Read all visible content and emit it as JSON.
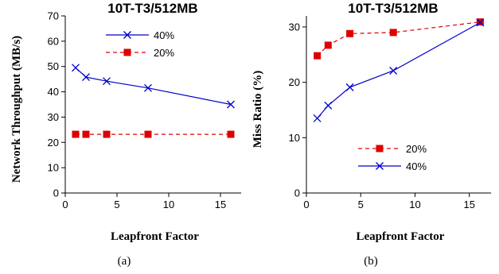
{
  "chart_data": [
    {
      "type": "line",
      "title": "10T-T3/512MB",
      "xlabel": "Leapfront Factor",
      "ylabel": "Network Throughput (MB/s)",
      "caption": "(a)",
      "xlim": [
        0,
        17
      ],
      "ylim": [
        0,
        70
      ],
      "xticks": [
        0,
        5,
        10,
        15
      ],
      "yticks": [
        0,
        10,
        20,
        30,
        40,
        50,
        60,
        70
      ],
      "legend_position": "top-right",
      "series": [
        {
          "name": "40%",
          "x": [
            1,
            2,
            4,
            8,
            16
          ],
          "values": [
            49.5,
            45.8,
            44.2,
            41.5,
            35
          ],
          "color": "#0000cc",
          "marker": "x",
          "dashed": false
        },
        {
          "name": "20%",
          "x": [
            1,
            2,
            4,
            8,
            16
          ],
          "values": [
            23.2,
            23.2,
            23.2,
            23.2,
            23.2
          ],
          "color": "#dd0000",
          "marker": "square",
          "dashed": true
        }
      ]
    },
    {
      "type": "line",
      "title": "10T-T3/512MB",
      "xlabel": "Leapfront Factor",
      "ylabel": "Miss Ratio (%)",
      "caption": "(b)",
      "xlim": [
        0,
        17
      ],
      "ylim": [
        0,
        32
      ],
      "xticks": [
        0,
        5,
        10,
        15
      ],
      "yticks": [
        0,
        10,
        20,
        30
      ],
      "legend_position": "bottom-center",
      "series": [
        {
          "name": "20%",
          "x": [
            1,
            2,
            4,
            8,
            16
          ],
          "values": [
            24.8,
            26.7,
            28.8,
            29,
            30.9
          ],
          "color": "#dd0000",
          "marker": "square",
          "dashed": true
        },
        {
          "name": "40%",
          "x": [
            1,
            2,
            4,
            8,
            16
          ],
          "values": [
            13.5,
            15.8,
            19.1,
            22.1,
            30.8
          ],
          "color": "#0000cc",
          "marker": "x",
          "dashed": false
        }
      ]
    }
  ]
}
